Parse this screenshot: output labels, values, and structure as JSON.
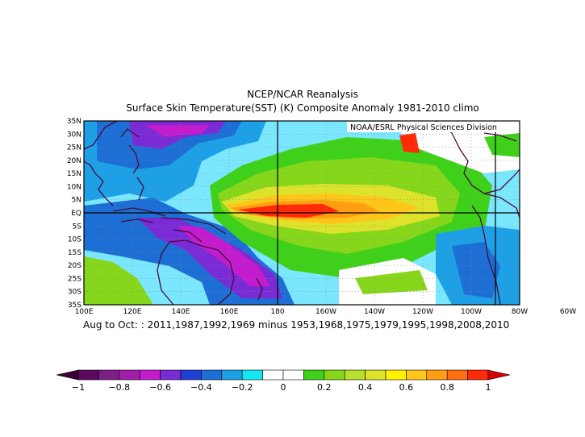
{
  "title_line1": "NCEP/NCAR Reanalysis",
  "title_line2": "Surface Skin Temperature(SST) (K) Composite Anomaly 1981-2010 climo",
  "credit": "NOAA/ESRL Physical Sciences Division",
  "caption": "Aug to Oct: : 2011,1987,1992,1969 minus 1953,1968,1975,1979,1995,1998,2008,2010",
  "map": {
    "lon_range": [
      100,
      280
    ],
    "lat_range": [
      -35,
      35
    ],
    "lat_ticks": [
      "35N",
      "30N",
      "25N",
      "20N",
      "15N",
      "10N",
      "5N",
      "EQ",
      "5S",
      "10S",
      "15S",
      "20S",
      "25S",
      "30S",
      "35S"
    ],
    "lon_ticks": [
      "100E",
      "120E",
      "140E",
      "160E",
      "180",
      "160W",
      "140W",
      "120W",
      "100W",
      "80W",
      "60W"
    ],
    "highlight_lines": {
      "lon": [
        180,
        270
      ],
      "lat": [
        0
      ]
    }
  },
  "colorbar": {
    "labels": [
      "-1",
      "-0.8",
      "-0.6",
      "-0.4",
      "-0.2",
      "0",
      "0.2",
      "0.4",
      "0.6",
      "0.8",
      "1"
    ],
    "colors": [
      "#5a0a5e",
      "#7e1f86",
      "#a01ea8",
      "#c21ccc",
      "#7a2bd6",
      "#1f3fd8",
      "#1d6fd6",
      "#1ea0e6",
      "#12e6f0",
      "#ffffff",
      "#ffffff",
      "#3fd11a",
      "#86d61c",
      "#b8e02e",
      "#dde32b",
      "#fff200",
      "#ffc61a",
      "#ff9e12",
      "#ff6f10",
      "#ff2a08"
    ],
    "low_end_color": "#3a0038",
    "high_end_color": "#d80000"
  }
}
